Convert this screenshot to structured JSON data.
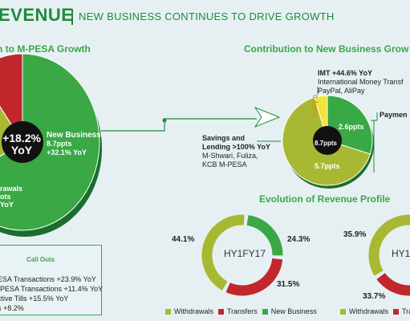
{
  "header": {
    "title": "EVENUE",
    "subtitle": "NEW BUSINESS CONTINUES TO DRIVE GROWTH"
  },
  "colors": {
    "green": "#39a845",
    "dark_green": "#1f8b3a",
    "olive": "#a8b832",
    "red": "#c1272d",
    "black": "#111111"
  },
  "chart_data": [
    {
      "type": "pie",
      "title": "n to M-PESA Growth",
      "center_label": [
        "+18.2%",
        "YoY"
      ],
      "slices": [
        {
          "name": "New Business",
          "label_lines": [
            "New Business",
            "8.7ppts",
            "+32.1% YoY"
          ],
          "value": 8.7,
          "color": "#39a845"
        },
        {
          "name": "Withdrawals",
          "label_lines": [
            "rawals",
            "ots",
            "YoY"
          ],
          "value": 3.0,
          "color": "#a8b832"
        },
        {
          "name": "Transfers",
          "label_lines": [],
          "value": 1.3,
          "color": "#c1272d"
        }
      ]
    },
    {
      "type": "pie",
      "title": "Contribution to New Business Grow",
      "center_label": "8.7ppts",
      "slices": [
        {
          "name": "Savings and Lending",
          "value": 5.7,
          "label": "5.7ppts",
          "color": "#a8b832"
        },
        {
          "name": "IMT",
          "value": 0.4,
          "label": "0.4ppts",
          "color": "#f2e53a"
        },
        {
          "name": "Payments",
          "value": 2.6,
          "label": "2.6ppts",
          "color": "#39a845"
        }
      ],
      "annotations": {
        "imt": {
          "heading": "IMT +44.6% YoY",
          "lines": [
            "International Money Transf",
            "PayPal, AliPay"
          ]
        },
        "savings": {
          "heading_lines": [
            "Savings and",
            "Lending >100% YoY"
          ],
          "lines": [
            "M-Shwari, Fuliza,",
            "KCB M-PESA"
          ]
        },
        "payments": {
          "heading": "Paymen"
        }
      }
    },
    {
      "type": "pie",
      "title": "Evolution of Revenue Profile",
      "donuts": [
        {
          "label": "HY1FY17",
          "slices": [
            {
              "name": "Withdrawals",
              "value": 44.1,
              "label": "44.1%",
              "color": "#a8b832"
            },
            {
              "name": "Transfers",
              "value": 31.5,
              "label": "31.5%",
              "color": "#c1272d"
            },
            {
              "name": "New Business",
              "value": 24.3,
              "label": "24.3%",
              "color": "#39a845"
            }
          ]
        },
        {
          "label": "HY1",
          "slices": [
            {
              "name": "Withdrawals",
              "value": 35.9,
              "label": "35.9%",
              "color": "#a8b832"
            },
            {
              "name": "Transfers",
              "value": 33.7,
              "label": "33.7%",
              "color": "#c1272d"
            },
            {
              "name": "New Business",
              "value": 30.4,
              "label": "",
              "color": "#39a845"
            }
          ]
        }
      ],
      "legend": [
        "Withdrawals",
        "Transfers",
        "New Business"
      ],
      "legend2": [
        "Withdrawals",
        "Tra"
      ]
    }
  ],
  "callouts": {
    "title": "Call Outs",
    "lines": [
      "ESA Transactions +23.9% YoY",
      "-PESA Transactions +11.4% YoY",
      "ctive Tills +15.5% YoY",
      "s +8.2%"
    ]
  }
}
